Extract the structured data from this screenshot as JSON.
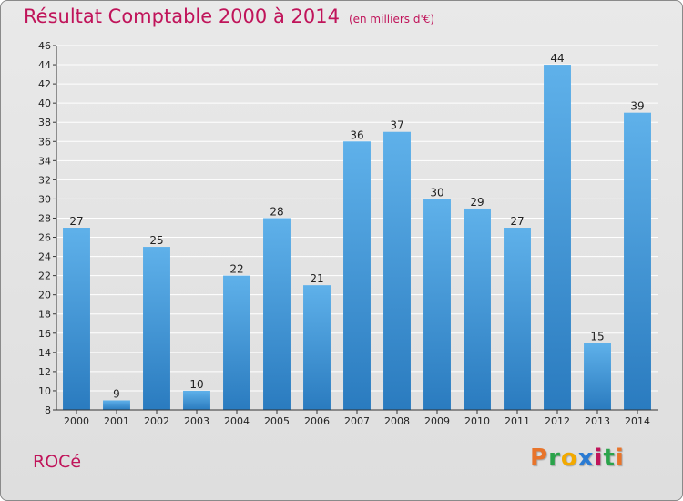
{
  "colors": {
    "title": "#c0145a",
    "bar_top": "#5fb1ea",
    "bar_bottom": "#2a7bbf",
    "gridline": "#ffffff",
    "axis": "#333333"
  },
  "header": {
    "title": "Résultat Comptable 2000 à 2014",
    "unit": "(en milliers d'€)"
  },
  "footer": {
    "commune": "ROCé",
    "logo_letters": [
      "P",
      "r",
      "o",
      "x",
      "i",
      "t",
      "i"
    ],
    "logo_colors": [
      "#e8742a",
      "#2aa34a",
      "#f2a900",
      "#2a7bd3",
      "#c0145a",
      "#2aa34a",
      "#e8742a"
    ]
  },
  "chart_data": {
    "type": "bar",
    "title": "Résultat Comptable 2000 à 2014",
    "subtitle": "(en milliers d'€)",
    "xlabel": "",
    "ylabel": "",
    "categories": [
      "2000",
      "2001",
      "2002",
      "2003",
      "2004",
      "2005",
      "2006",
      "2007",
      "2008",
      "2009",
      "2010",
      "2011",
      "2012",
      "2013",
      "2014"
    ],
    "values": [
      27,
      9,
      25,
      10,
      22,
      28,
      21,
      36,
      37,
      30,
      29,
      27,
      44,
      15,
      39
    ],
    "ylim": [
      8,
      46
    ],
    "yticks": [
      8,
      10,
      12,
      14,
      16,
      18,
      20,
      22,
      24,
      26,
      28,
      30,
      32,
      34,
      36,
      38,
      40,
      42,
      44,
      46
    ],
    "grid": true,
    "legend": "none"
  }
}
